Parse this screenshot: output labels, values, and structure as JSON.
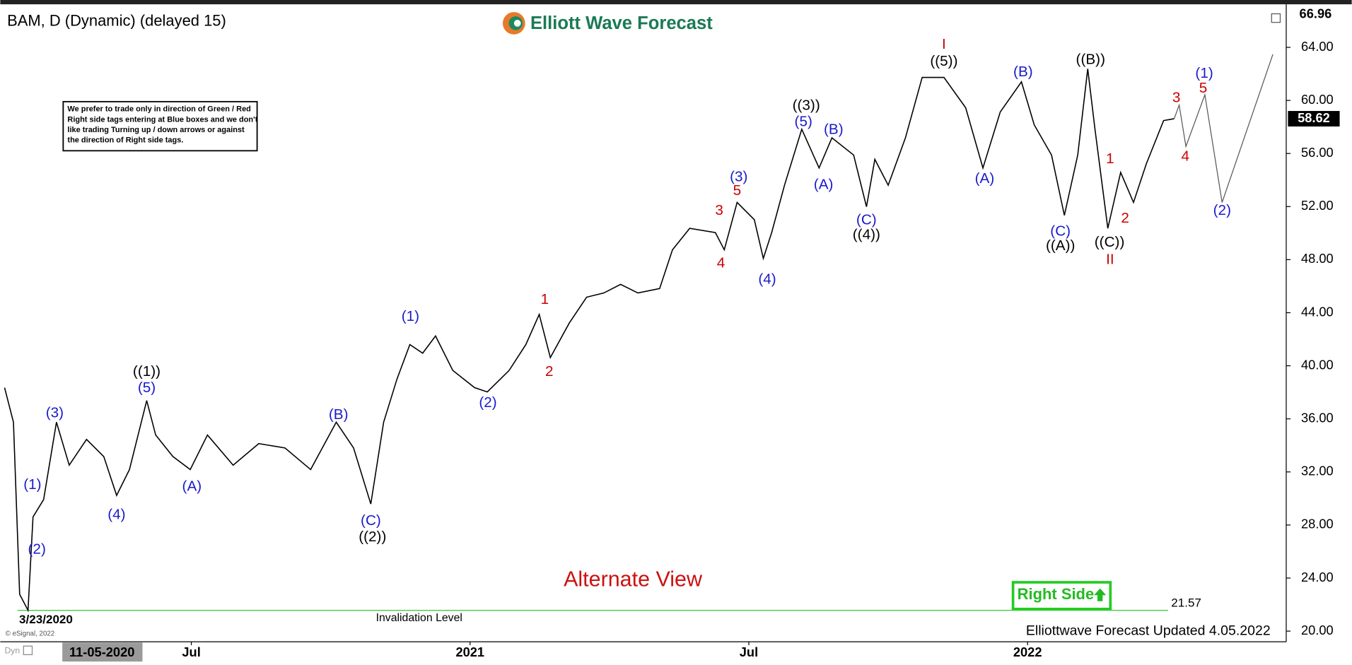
{
  "chart_data": {
    "type": "line",
    "title": "BAM, D (Dynamic) (delayed 15)",
    "brand": "Elliott Wave Forecast",
    "note": [
      "We prefer to trade only in direction of Green / Red",
      "Right side tags entering at Blue boxes and we don't",
      "like trading Turning up / down arrows or against",
      "the direction of Right side tags."
    ],
    "subtitle": "Alternate View",
    "right_side": "Right Side",
    "updated": "Elliottwave Forecast Updated 4.05.2022",
    "copyright": "© eSignal, 2022",
    "mode": "Dyn",
    "cursor_date": "11-05-2020",
    "low_date": "3/23/2020",
    "invalidation": {
      "label": "Invalidation Level",
      "value": 21.57
    },
    "last_price": 58.62,
    "top_price": 66.96,
    "xlim": [
      2020.165,
      2022.464
    ],
    "ylim": [
      19.2,
      67.05
    ],
    "xticks": [
      {
        "value": 2020.5,
        "label": "Jul"
      },
      2021,
      {
        "value": 2021.5,
        "label": "Jul"
      },
      2022
    ],
    "yticks": [
      {
        "value": 20,
        "label": "20.00"
      },
      {
        "value": 24,
        "label": "24.00"
      },
      {
        "value": 28,
        "label": "28.00"
      },
      {
        "value": 32,
        "label": "32.00"
      },
      {
        "value": 36,
        "label": "36.00"
      },
      {
        "value": 40,
        "label": "40.00"
      },
      {
        "value": 44,
        "label": "44.00"
      },
      {
        "value": 48,
        "label": "48.00"
      },
      {
        "value": 52,
        "label": "52.00"
      },
      {
        "value": 56,
        "label": "56.00"
      },
      {
        "value": 60,
        "label": "60.00"
      },
      {
        "value": 64,
        "label": "64.00"
      }
    ],
    "series": [
      {
        "color": "#000000",
        "x": [
          2020.165,
          2020.181,
          2020.192,
          2020.207,
          2020.216,
          2020.235,
          2020.258,
          2020.281,
          2020.312,
          2020.343,
          2020.366,
          2020.389,
          2020.42,
          2020.436,
          2020.467,
          2020.498,
          2020.529,
          2020.575,
          2020.621,
          2020.668,
          2020.714,
          2020.76,
          2020.791,
          2020.822,
          2020.845,
          2020.869,
          2020.892,
          2020.915,
          2020.938,
          2020.969,
          2021.008,
          2021.031,
          2021.07,
          2021.1,
          2021.124,
          2021.144,
          2021.178,
          2021.209,
          2021.24,
          2021.27,
          2021.301,
          2021.34,
          2021.363,
          2021.394,
          2021.44,
          2021.456,
          2021.479,
          2021.51,
          2021.526,
          2021.541,
          2021.564,
          2021.595,
          2021.626,
          2021.649,
          2021.688,
          2021.711,
          2021.726,
          2021.75,
          2021.781,
          2021.811,
          2021.85,
          2021.889,
          2021.92,
          2021.951,
          2021.989,
          2022.012,
          2022.043,
          2022.066,
          2022.09,
          2022.108,
          2022.121,
          2022.144,
          2022.167,
          2022.19,
          2022.213,
          2022.244,
          2022.263
        ],
        "values": [
          38.35,
          35.75,
          22.77,
          21.57,
          28.61,
          29.91,
          35.75,
          32.51,
          34.45,
          33.16,
          30.23,
          32.18,
          37.38,
          34.78,
          33.16,
          32.18,
          34.78,
          32.51,
          34.13,
          33.81,
          32.18,
          35.75,
          33.81,
          29.58,
          35.75,
          39,
          41.6,
          40.95,
          42.25,
          39.65,
          38.35,
          38.03,
          39.65,
          41.6,
          43.87,
          40.62,
          43.22,
          45.17,
          45.49,
          46.14,
          45.49,
          45.82,
          48.74,
          50.36,
          50.04,
          48.74,
          52.31,
          51.01,
          48.09,
          50.04,
          53.61,
          57.83,
          54.91,
          57.18,
          55.88,
          51.99,
          55.56,
          53.61,
          57.18,
          61.73,
          61.73,
          59.45,
          54.91,
          59.13,
          61.4,
          58.16,
          55.88,
          51.34,
          55.88,
          62.38,
          57.83,
          50.36,
          54.58,
          52.31,
          55.23,
          58.48,
          58.62
        ]
      },
      {
        "color": "#555555",
        "x": [
          2022.263,
          2022.272,
          2022.284,
          2022.318,
          2022.349,
          2022.44
        ],
        "values": [
          58.62,
          59.65,
          56.53,
          60.43,
          52.31,
          63.48
        ]
      }
    ],
    "annotations": [
      {
        "text": "(1)",
        "x": 2020.215,
        "y": 31.01,
        "color": "#1a1acc"
      },
      {
        "text": "(2)",
        "x": 2020.223,
        "y": 26.14,
        "color": "#1a1acc"
      },
      {
        "text": "(3)",
        "x": 2020.255,
        "y": 36.4,
        "color": "#1a1acc"
      },
      {
        "text": "(4)",
        "x": 2020.366,
        "y": 28.74,
        "color": "#1a1acc"
      },
      {
        "text": "(5)",
        "x": 2020.42,
        "y": 38.29,
        "color": "#1a1acc"
      },
      {
        "text": "((1))",
        "x": 2020.42,
        "y": 39.52,
        "color": "#000000"
      },
      {
        "text": "(A)",
        "x": 2020.501,
        "y": 30.88,
        "color": "#1a1acc"
      },
      {
        "text": "(B)",
        "x": 2020.764,
        "y": 36.27,
        "color": "#1a1acc"
      },
      {
        "text": "(C)",
        "x": 2020.822,
        "y": 28.29,
        "color": "#1a1acc"
      },
      {
        "text": "((2))",
        "x": 2020.825,
        "y": 27.05,
        "color": "#000000"
      },
      {
        "text": "(1)",
        "x": 2020.893,
        "y": 43.68,
        "color": "#1a1acc"
      },
      {
        "text": "(2)",
        "x": 2021.032,
        "y": 37.18,
        "color": "#1a1acc"
      },
      {
        "text": "1",
        "x": 2021.134,
        "y": 44.97,
        "color": "#cc0000"
      },
      {
        "text": "2",
        "x": 2021.142,
        "y": 39.52,
        "color": "#cc0000"
      },
      {
        "text": "3",
        "x": 2021.447,
        "y": 51.66,
        "color": "#cc0000"
      },
      {
        "text": "4",
        "x": 2021.45,
        "y": 47.7,
        "color": "#cc0000"
      },
      {
        "text": "(3)",
        "x": 2021.482,
        "y": 54.19,
        "color": "#1a1acc"
      },
      {
        "text": "5",
        "x": 2021.479,
        "y": 53.16,
        "color": "#cc0000"
      },
      {
        "text": "(4)",
        "x": 2021.533,
        "y": 46.47,
        "color": "#1a1acc"
      },
      {
        "text": "((3))",
        "x": 2021.603,
        "y": 59.58,
        "color": "#000000"
      },
      {
        "text": "(5)",
        "x": 2021.598,
        "y": 58.35,
        "color": "#1a1acc"
      },
      {
        "text": "(A)",
        "x": 2021.634,
        "y": 53.61,
        "color": "#1a1acc"
      },
      {
        "text": "(B)",
        "x": 2021.652,
        "y": 57.77,
        "color": "#1a1acc"
      },
      {
        "text": "(C)",
        "x": 2021.711,
        "y": 50.95,
        "color": "#1a1acc"
      },
      {
        "text": "((4))",
        "x": 2021.711,
        "y": 49.84,
        "color": "#000000"
      },
      {
        "text": "I",
        "x": 2021.85,
        "y": 64.19,
        "color": "#cc0000"
      },
      {
        "text": "((5))",
        "x": 2021.85,
        "y": 62.9,
        "color": "#000000"
      },
      {
        "text": "(A)",
        "x": 2021.923,
        "y": 54.06,
        "color": "#1a1acc"
      },
      {
        "text": "(B)",
        "x": 2021.992,
        "y": 62.12,
        "color": "#1a1acc"
      },
      {
        "text": "((B))",
        "x": 2022.113,
        "y": 63.03,
        "color": "#000000"
      },
      {
        "text": "(C)",
        "x": 2022.059,
        "y": 50.1,
        "color": "#1a1acc"
      },
      {
        "text": "((A))",
        "x": 2022.059,
        "y": 49,
        "color": "#000000"
      },
      {
        "text": "1",
        "x": 2022.148,
        "y": 55.56,
        "color": "#cc0000"
      },
      {
        "text": "2",
        "x": 2022.175,
        "y": 51.08,
        "color": "#cc0000"
      },
      {
        "text": "((C))",
        "x": 2022.147,
        "y": 49.26,
        "color": "#000000"
      },
      {
        "text": "II",
        "x": 2022.148,
        "y": 47.96,
        "color": "#cc0000"
      },
      {
        "text": "3",
        "x": 2022.267,
        "y": 60.17,
        "color": "#cc0000"
      },
      {
        "text": "4",
        "x": 2022.283,
        "y": 55.75,
        "color": "#cc0000"
      },
      {
        "text": "5",
        "x": 2022.315,
        "y": 60.88,
        "color": "#cc0000"
      },
      {
        "text": "(1)",
        "x": 2022.317,
        "y": 61.99,
        "color": "#1a1acc"
      },
      {
        "text": "(2)",
        "x": 2022.349,
        "y": 51.66,
        "color": "#1a1acc"
      }
    ]
  }
}
